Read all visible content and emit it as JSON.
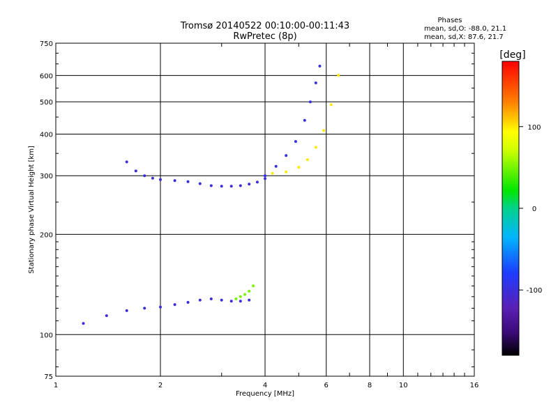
{
  "title_line1": "Tromsø 20140522 00:10:00-00:11:43",
  "title_line2": "RwPretec (8p)",
  "stats": {
    "header": "Phases",
    "line_o": "mean, sd,O: -88.0, 21.1",
    "line_x": "mean, sd,X: 87.6, 21.7"
  },
  "colorbar": {
    "label": "[deg]",
    "ticks": [
      "100",
      "0",
      "-100"
    ],
    "range": [
      -180,
      180
    ]
  },
  "chart_data": {
    "type": "scatter",
    "xlabel": "Frequency [MHz]",
    "ylabel": "Stationary phase Virtual Height [km]",
    "xscale": "log",
    "yscale": "log",
    "xlim": [
      1,
      16
    ],
    "ylim": [
      75,
      750
    ],
    "xticks": [
      1,
      2,
      4,
      6,
      8,
      10,
      16
    ],
    "yticks": [
      75,
      100,
      200,
      300,
      400,
      500,
      600,
      750
    ],
    "grid": true,
    "series": [
      {
        "x": [
          1.6,
          1.7,
          1.8,
          1.9,
          2.0,
          2.2,
          2.4,
          2.6,
          2.8,
          3.0,
          3.2,
          3.4,
          3.6,
          3.8,
          4.0
        ],
        "y": [
          330,
          310,
          300,
          295,
          292,
          290,
          288,
          284,
          280,
          279,
          279,
          280,
          283,
          287,
          294
        ],
        "phase": -100
      },
      {
        "x": [
          4.0,
          4.3,
          4.6,
          4.9,
          5.2,
          5.4,
          5.6,
          5.75
        ],
        "y": [
          300,
          320,
          345,
          380,
          440,
          500,
          570,
          640
        ],
        "phase": -95
      },
      {
        "x": [
          4.2,
          4.6,
          5.0,
          5.3,
          5.6,
          5.9,
          6.2,
          6.5
        ],
        "y": [
          305,
          308,
          318,
          335,
          365,
          410,
          490,
          600
        ],
        "phase": 100
      },
      {
        "x": [
          1.2,
          1.4,
          1.6,
          1.8,
          2.0,
          2.2,
          2.4,
          2.6,
          2.8,
          3.0,
          3.2,
          3.4,
          3.6
        ],
        "y": [
          108,
          114,
          118,
          120,
          121,
          123,
          125,
          127,
          128,
          127,
          126,
          126,
          127
        ],
        "phase": -100
      },
      {
        "x": [
          3.3,
          3.4,
          3.5,
          3.6,
          3.7
        ],
        "y": [
          128,
          130,
          132,
          135,
          140
        ],
        "phase": 50
      }
    ]
  }
}
